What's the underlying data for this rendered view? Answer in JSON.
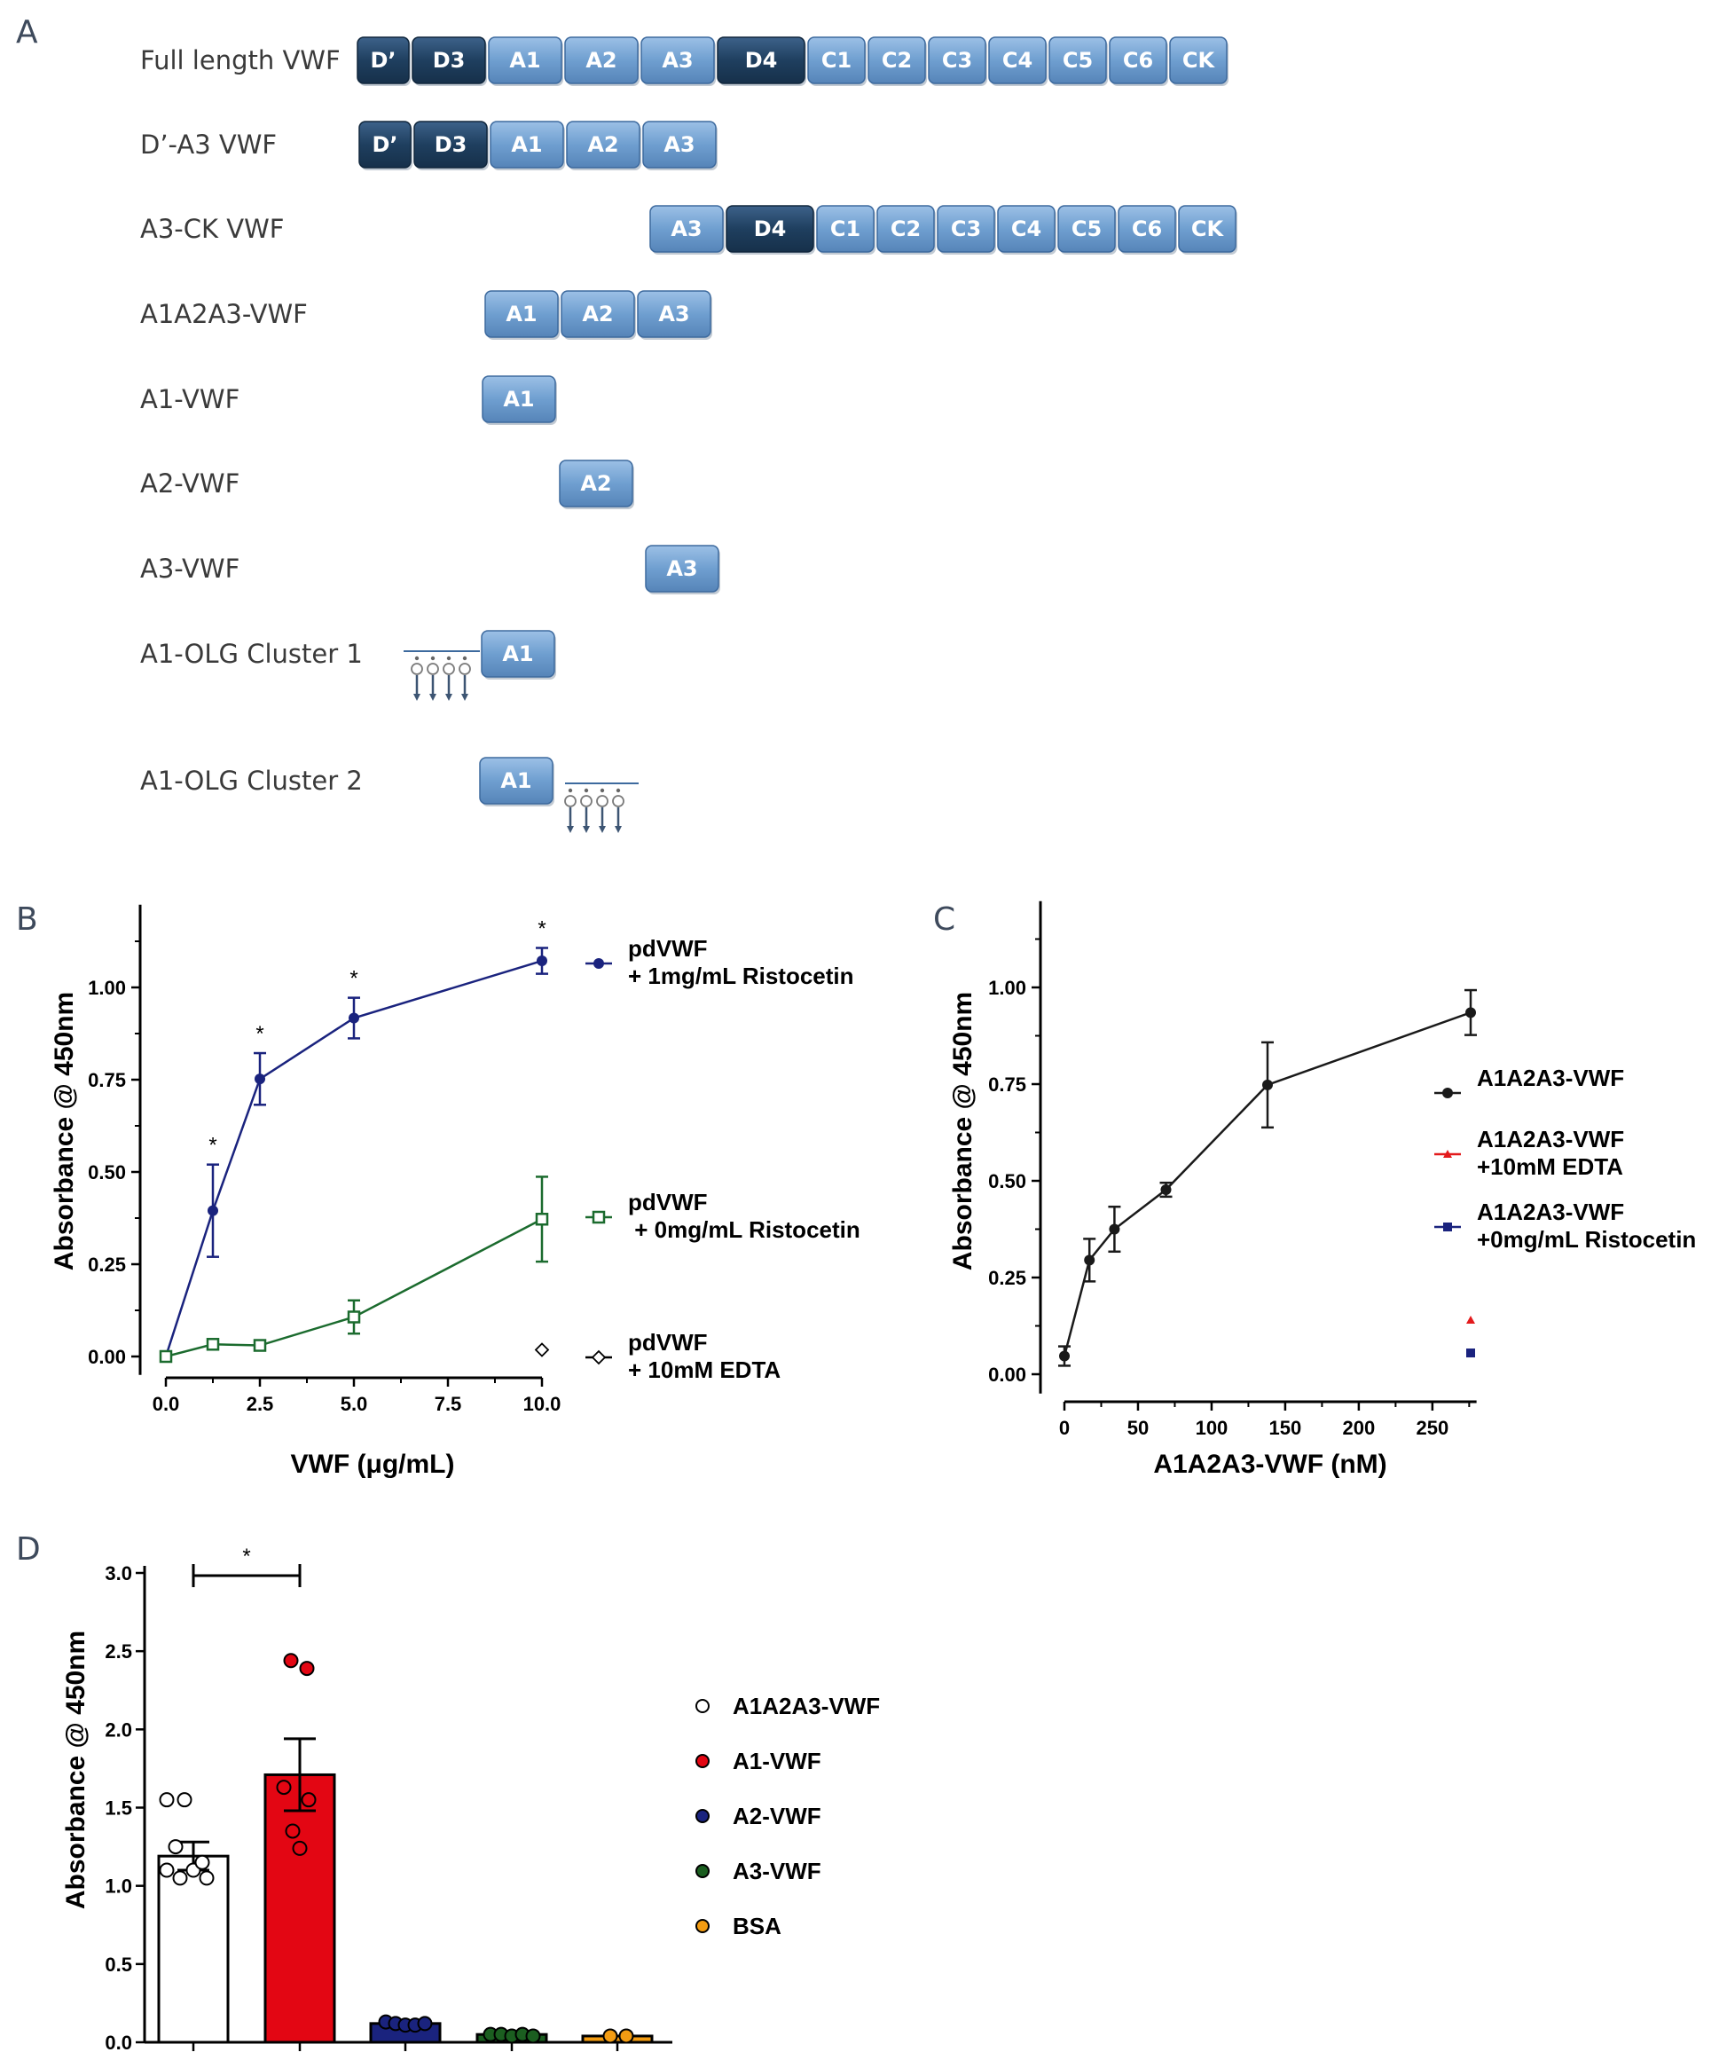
{
  "panel_letters": [
    "A",
    "B",
    "C",
    "D"
  ],
  "panel_a": {
    "domain_colors": {
      "dark": "#1f3f5f",
      "light": "#6f9fd0"
    },
    "rows": [
      {
        "label": "Full length VWF",
        "domains": [
          "D’",
          "D3",
          "A1",
          "A2",
          "A3",
          "D4",
          "C1",
          "C2",
          "C3",
          "C4",
          "C5",
          "C6",
          "CK"
        ]
      },
      {
        "label": "D’-A3 VWF",
        "domains": [
          "D’",
          "D3",
          "A1",
          "A2",
          "A3"
        ]
      },
      {
        "label": "A3-CK VWF",
        "domains": [
          "A3",
          "D4",
          "C1",
          "C2",
          "C3",
          "C4",
          "C5",
          "C6",
          "CK"
        ]
      },
      {
        "label": "A1A2A3-VWF",
        "domains": [
          "A1",
          "A2",
          "A3"
        ]
      },
      {
        "label": "A1-VWF",
        "domains": [
          "A1"
        ]
      },
      {
        "label": "A2-VWF",
        "domains": [
          "A2"
        ]
      },
      {
        "label": "A3-VWF",
        "domains": [
          "A3"
        ]
      },
      {
        "label": "A1-OLG Cluster 1",
        "domains": [
          "A1"
        ],
        "glycan_cluster": "N-terminal"
      },
      {
        "label": "A1-OLG Cluster 2",
        "domains": [
          "A1"
        ],
        "glycan_cluster": "C-terminal"
      }
    ]
  },
  "chart_data": [
    {
      "panel": "B",
      "type": "line",
      "xlabel": "VWF (μg/mL)",
      "ylabel": "Absorbance @ 450nm",
      "xlim": [
        0,
        10
      ],
      "ylim": [
        -0.05,
        1.2
      ],
      "xticks": [
        "0.0",
        "2.5",
        "5.0",
        "7.5",
        "10.0"
      ],
      "yticks": [
        "0.00",
        "0.25",
        "0.50",
        "0.75",
        "1.00"
      ],
      "legend_position": "right",
      "series": [
        {
          "name": "pdVWF\n+ 1mg/mL Ristocetin",
          "color": "#1a237e",
          "marker": "circle",
          "x": [
            0,
            1.25,
            2.5,
            5,
            10
          ],
          "y": [
            0.0,
            0.395,
            0.752,
            0.917,
            1.072
          ],
          "err": [
            0.005,
            0.125,
            0.07,
            0.055,
            0.035
          ],
          "significant": [
            false,
            true,
            true,
            true,
            true
          ]
        },
        {
          "name": "pdVWF\n + 0mg/mL Ristocetin",
          "color": "#1b6b2e",
          "marker": "square-open",
          "x": [
            0,
            1.25,
            2.5,
            5,
            10
          ],
          "y": [
            0.0,
            0.033,
            0.03,
            0.107,
            0.372
          ],
          "err": [
            0.005,
            0.005,
            0.005,
            0.045,
            0.115
          ]
        },
        {
          "name": "pdVWF\n+ 10mM EDTA",
          "color": "#000000",
          "marker": "diamond-open",
          "x": [
            10
          ],
          "y": [
            0.018
          ],
          "err": [
            0
          ]
        }
      ],
      "significance_label": "*"
    },
    {
      "panel": "C",
      "type": "line",
      "xlabel": "A1A2A3-VWF (nM)",
      "ylabel": "Absorbance @ 450nm",
      "xlim": [
        0,
        280
      ],
      "ylim": [
        -0.05,
        1.2
      ],
      "xticks": [
        "0",
        "50",
        "100",
        "150",
        "200",
        "250"
      ],
      "yticks": [
        "0.00",
        "0.25",
        "0.50",
        "0.75",
        "1.00"
      ],
      "legend_position": "right",
      "series": [
        {
          "name": "A1A2A3-VWF",
          "color": "#1a1a1a",
          "marker": "circle",
          "x": [
            0,
            17,
            34,
            69,
            138,
            276
          ],
          "y": [
            0.047,
            0.295,
            0.375,
            0.477,
            0.748,
            0.935
          ],
          "err": [
            0.025,
            0.055,
            0.058,
            0.018,
            0.11,
            0.058
          ]
        },
        {
          "name": "A1A2A3-VWF\n+10mM EDTA",
          "color": "#e31a1c",
          "marker": "triangle",
          "x": [
            276
          ],
          "y": [
            0.14
          ],
          "err": [
            0
          ]
        },
        {
          "name": "A1A2A3-VWF\n+0mg/mL Ristocetin",
          "color": "#1a237e",
          "marker": "square",
          "x": [
            276
          ],
          "y": [
            0.055
          ],
          "err": [
            0
          ]
        }
      ]
    },
    {
      "panel": "D",
      "type": "bar",
      "ylabel": "Absorbance @ 450nm",
      "ylim": [
        0,
        3.0
      ],
      "yticks": [
        "0.0",
        "0.5",
        "1.0",
        "1.5",
        "2.0",
        "2.5",
        "3.0"
      ],
      "legend_position": "right",
      "categories": [
        "A1A2A3-VWF",
        "A1-VWF",
        "A2-VWF",
        "A3-VWF",
        "BSA"
      ],
      "colors": [
        "#ffffff",
        "#e30613",
        "#1a237e",
        "#1b5e20",
        "#f39c12"
      ],
      "values": [
        1.19,
        1.71,
        0.12,
        0.05,
        0.04
      ],
      "sem": [
        0.09,
        0.23,
        0.01,
        0.005,
        0.005
      ],
      "points": [
        [
          1.55,
          1.55,
          1.25,
          1.1,
          1.1,
          1.05,
          1.05,
          1.15
        ],
        [
          2.44,
          2.39,
          1.63,
          1.55,
          1.24,
          1.35
        ],
        [
          0.13,
          0.12,
          0.11,
          0.11,
          0.12
        ],
        [
          0.05,
          0.05,
          0.04,
          0.05,
          0.04
        ],
        [
          0.04,
          0.04
        ]
      ],
      "significance": {
        "between": [
          0,
          1
        ],
        "label": "*"
      }
    }
  ]
}
